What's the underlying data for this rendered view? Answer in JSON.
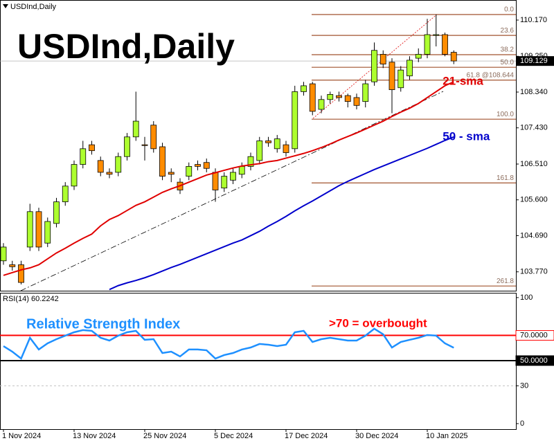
{
  "chart_data": [
    {
      "type": "candlestick",
      "symbol_label": "USDInd,Daily",
      "title": "USDInd,Daily",
      "categories": [
        "1 Nov 2024",
        null,
        null,
        null,
        null,
        null,
        null,
        null,
        "13 Nov 2024",
        null,
        null,
        null,
        null,
        null,
        null,
        null,
        "25 Nov 2024",
        null,
        null,
        null,
        null,
        null,
        null,
        null,
        "5 Dec 2024",
        null,
        null,
        null,
        null,
        null,
        null,
        null,
        "17 Dec 2024",
        null,
        null,
        null,
        null,
        null,
        null,
        null,
        "30 Dec 2024",
        null,
        null,
        null,
        null,
        null,
        null,
        null,
        "10 Jan 2025",
        null,
        null,
        null
      ],
      "open": [
        104.05,
        103.95,
        103.95,
        104.4,
        105.3,
        104.5,
        105.0,
        105.55,
        105.95,
        106.5,
        107.0,
        106.6,
        106.3,
        106.3,
        106.7,
        107.2,
        107.0,
        107.5,
        106.95,
        106.3,
        106.05,
        106.2,
        106.5,
        106.55,
        106.3,
        105.9,
        106.1,
        106.25,
        106.45,
        106.6,
        107.1,
        106.9,
        107.0,
        106.9,
        108.35,
        108.55,
        107.9,
        108.15,
        108.25,
        108.25,
        108.2,
        108.1,
        108.6,
        109.3,
        109.1,
        108.45,
        108.75,
        109.2,
        109.3,
        109.78,
        109.8,
        109.35
      ],
      "high": [
        104.5,
        104.05,
        104.05,
        105.5,
        105.4,
        105.15,
        105.65,
        106.05,
        106.6,
        107.1,
        107.1,
        106.7,
        106.4,
        106.8,
        107.3,
        108.35,
        107.2,
        107.6,
        107.05,
        106.4,
        106.15,
        106.55,
        106.6,
        106.65,
        106.4,
        106.3,
        106.4,
        106.55,
        106.8,
        107.2,
        107.2,
        107.25,
        107.1,
        108.5,
        108.6,
        108.6,
        108.25,
        108.35,
        108.35,
        108.3,
        108.3,
        108.65,
        109.6,
        109.4,
        109.2,
        109.0,
        109.25,
        109.45,
        110.2,
        110.31,
        109.85,
        109.4
      ],
      "low": [
        103.95,
        103.8,
        103.45,
        104.3,
        104.3,
        104.4,
        104.9,
        105.45,
        105.85,
        106.4,
        106.75,
        106.2,
        106.15,
        106.2,
        106.6,
        107.1,
        106.6,
        106.8,
        106.1,
        106.05,
        105.75,
        106.1,
        106.35,
        106.3,
        105.55,
        105.8,
        106.0,
        106.15,
        106.35,
        106.5,
        106.95,
        106.8,
        106.7,
        106.8,
        108.25,
        107.75,
        107.8,
        108.05,
        108.1,
        107.95,
        107.9,
        107.95,
        108.5,
        108.95,
        107.8,
        108.35,
        108.65,
        109.1,
        109.2,
        109.5,
        109.25,
        109.05
      ],
      "close": [
        104.4,
        103.9,
        103.5,
        105.3,
        104.4,
        105.05,
        105.55,
        105.95,
        106.5,
        106.9,
        106.85,
        106.3,
        106.25,
        106.7,
        107.2,
        107.6,
        106.98,
        106.9,
        106.2,
        106.25,
        105.85,
        106.45,
        106.45,
        106.4,
        105.85,
        106.2,
        106.3,
        106.45,
        106.7,
        107.1,
        107.05,
        107.15,
        106.8,
        108.35,
        108.5,
        107.85,
        108.15,
        108.28,
        108.2,
        108.1,
        108.0,
        108.55,
        109.4,
        109.05,
        108.4,
        108.9,
        109.15,
        109.3,
        109.8,
        109.8,
        109.3,
        109.13
      ],
      "up_color": "#adff2f",
      "down_color": "#ff8c00",
      "series": [
        {
          "name": "21-sma",
          "color": "#e00000",
          "values": [
            103.68,
            103.75,
            103.82,
            103.87,
            103.95,
            104.1,
            104.25,
            104.37,
            104.5,
            104.62,
            104.73,
            104.94,
            105.1,
            105.2,
            105.33,
            105.46,
            105.55,
            105.67,
            105.79,
            105.88,
            105.96,
            106.05,
            106.14,
            106.23,
            106.29,
            106.35,
            106.41,
            106.46,
            106.49,
            106.52,
            106.57,
            106.6,
            106.66,
            106.72,
            106.78,
            106.85,
            106.93,
            107.02,
            107.12,
            107.21,
            107.3,
            107.4,
            107.5,
            107.6,
            107.72,
            107.83,
            107.93,
            108.05,
            108.2,
            108.35,
            108.5,
            108.6
          ]
        },
        {
          "name": "50 - sma",
          "color": "#0000cc",
          "values": [
            null,
            null,
            null,
            null,
            null,
            null,
            null,
            null,
            null,
            null,
            null,
            null,
            103.32,
            103.42,
            103.49,
            103.55,
            103.62,
            103.7,
            103.79,
            103.88,
            103.96,
            104.05,
            104.14,
            104.23,
            104.32,
            104.41,
            104.5,
            104.58,
            104.69,
            104.8,
            104.93,
            105.05,
            105.18,
            105.32,
            105.45,
            105.57,
            105.7,
            105.83,
            105.96,
            106.07,
            106.17,
            106.27,
            106.37,
            106.46,
            106.55,
            106.64,
            106.73,
            106.82,
            106.91,
            107.01,
            107.11,
            107.2
          ]
        }
      ],
      "fib_levels": [
        {
          "label": "0.0",
          "price": 110.31
        },
        {
          "label": "23.6",
          "price": 109.78
        },
        {
          "label": "38.2",
          "price": 109.29
        },
        {
          "label": "50.0",
          "price": 108.97
        },
        {
          "label": "61.8 @108.644",
          "price": 108.644
        },
        {
          "label": "100.0",
          "price": 107.65
        },
        {
          "label": "161.8",
          "price": 106.03
        },
        {
          "label": "261.8",
          "price": 103.41
        }
      ],
      "fib_color": "#a0522d",
      "last_price": 109.129,
      "ylim": [
        103.29,
        110.68
      ],
      "yticks": [
        {
          "value": 110.17,
          "label": "110.170"
        },
        {
          "value": 109.25,
          "label": "109.250"
        },
        {
          "value": 108.34,
          "label": "108.340"
        },
        {
          "value": 107.43,
          "label": "107.430"
        },
        {
          "value": 106.51,
          "label": "106.510"
        },
        {
          "value": 105.6,
          "label": "105.600"
        },
        {
          "value": 104.69,
          "label": "104.690"
        },
        {
          "value": 103.77,
          "label": "103.770"
        }
      ]
    },
    {
      "type": "line",
      "title": "RSI(14) 60.2242",
      "annotations": [
        "Relative Strength Index",
        ">70 = overbought"
      ],
      "color": "#1e90ff",
      "values": [
        61.5,
        57.1,
        51.6,
        68.1,
        58.8,
        63.7,
        67.0,
        69.8,
        72.5,
        74.2,
        73.6,
        68.1,
        65.9,
        69.8,
        72.5,
        73.6,
        66.5,
        67.0,
        56.0,
        57.1,
        53.3,
        58.8,
        58.8,
        58.2,
        51.6,
        54.4,
        56.0,
        58.8,
        60.4,
        63.2,
        62.6,
        61.5,
        62.6,
        72.5,
        73.6,
        64.8,
        67.0,
        68.1,
        67.0,
        65.9,
        65.9,
        69.8,
        75.3,
        70.9,
        60.4,
        64.8,
        66.5,
        68.1,
        70.3,
        69.8,
        63.7,
        60.2
      ],
      "levels": [
        {
          "value": 70,
          "color": "#ff0000"
        },
        {
          "value": 50,
          "color": "#000000"
        },
        {
          "value": 30,
          "color": "#c0c0c0"
        }
      ],
      "ylim": [
        -4.4,
        103.8
      ],
      "yticks": [
        100,
        {
          "value": 70,
          "label": "70.0000"
        },
        {
          "value": 50,
          "label": "50.0000"
        },
        30,
        0
      ]
    }
  ]
}
